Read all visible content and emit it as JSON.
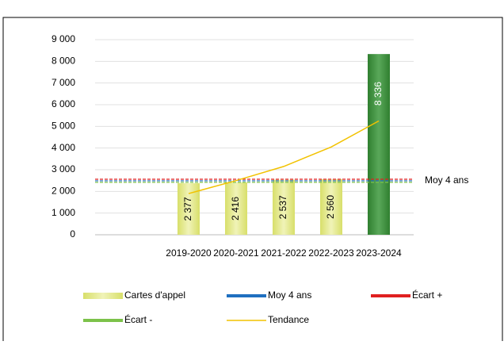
{
  "chart_data": {
    "type": "bar",
    "categories": [
      "2019-2020",
      "2020-2021",
      "2021-2022",
      "2022-2023",
      "2023-2024"
    ],
    "series": [
      {
        "name": "Cartes d'appel",
        "color": "#e3e88a",
        "colors": [
          "#e3e88a",
          "#e3e88a",
          "#e3e88a",
          "#e3e88a",
          "#3d8f3d"
        ],
        "values": [
          2377,
          2416,
          2537,
          2560,
          8336
        ],
        "value_labels": [
          "2 377",
          "2 416",
          "2 537",
          "2 560",
          "8 336"
        ]
      },
      {
        "name": "Moy 4 ans",
        "color": "#1f6fc0",
        "value": 2490
      },
      {
        "name": "Écart +",
        "color": "#e02020",
        "value": 2560
      },
      {
        "name": "Écart -",
        "color": "#7cc24a",
        "value": 2420
      },
      {
        "name": "Tendance",
        "color": "#f2c200",
        "values": [
          1900,
          2500,
          3150,
          4050,
          5250
        ]
      }
    ],
    "ylim": [
      0,
      9000
    ],
    "yticks": [
      0,
      {
        "value": 1000,
        "label": "1 000"
      },
      {
        "value": 2000,
        "label": "2 000"
      },
      {
        "value": 3000,
        "label": "3 000"
      },
      {
        "value": 4000,
        "label": "4 000"
      },
      {
        "value": 5000,
        "label": "5 000"
      },
      {
        "value": 6000,
        "label": "6 000"
      },
      {
        "value": 7000,
        "label": "7 000"
      },
      {
        "value": 8000,
        "label": "8 000"
      },
      {
        "value": 9000,
        "label": "9 000"
      }
    ],
    "grid": true
  }
}
